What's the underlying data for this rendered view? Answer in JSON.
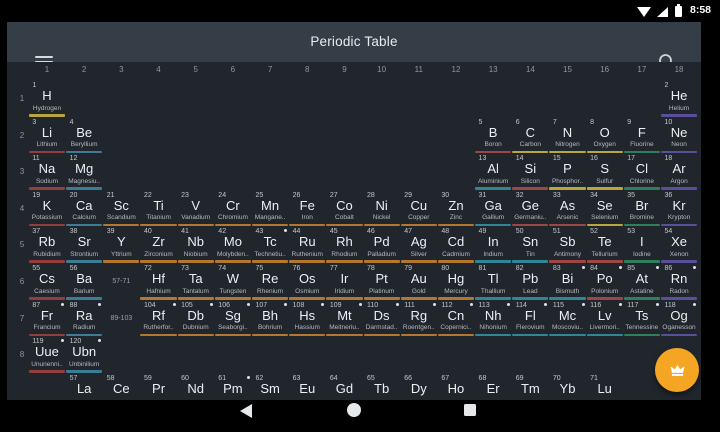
{
  "status_bar": {
    "time": "8:58",
    "icons": [
      "wifi-icon",
      "cell-signal-icon",
      "battery-icon"
    ]
  },
  "app_bar": {
    "title": "Periodic Table",
    "menu_icon": "hamburger-menu-icon",
    "search_icon": "search-icon"
  },
  "colors": {
    "status_bar_bg": "#000000",
    "app_bar_bg": "#353d46",
    "body_bg": "#21262d",
    "fab": "#f5a524",
    "category_colors": {
      "alkali": "#963c3c",
      "alkaline": "#3b7d96",
      "transition": "#b5762f",
      "post_transition": "#2f8696",
      "metalloid": "#a04545",
      "nonmetal": "#b9a73e",
      "halogen": "#2f7e5e",
      "noble": "#5b4f99",
      "lanthanide": "#4a8a5a"
    }
  },
  "table": {
    "group_labels": [
      "1",
      "2",
      "3",
      "4",
      "5",
      "6",
      "7",
      "8",
      "9",
      "10",
      "11",
      "12",
      "13",
      "14",
      "15",
      "16",
      "17",
      "18"
    ],
    "period_labels": [
      "1",
      "2",
      "3",
      "4",
      "5",
      "6",
      "7",
      "8"
    ],
    "placeholders": [
      {
        "label": "57-71",
        "row": 6,
        "col": 3
      },
      {
        "label": "89-103",
        "row": 7,
        "col": 3
      }
    ],
    "element_fields": [
      "atomic_number",
      "symbol",
      "name",
      "row",
      "col",
      "category",
      "radioactive_dot"
    ],
    "elements": [
      [
        1,
        "H",
        "Hydrogen",
        1,
        1,
        "nonmetal",
        0
      ],
      [
        2,
        "He",
        "Helium",
        1,
        18,
        "noble",
        0
      ],
      [
        3,
        "Li",
        "Lithium",
        2,
        1,
        "alkali",
        0
      ],
      [
        4,
        "Be",
        "Beryllium",
        2,
        2,
        "alkaline",
        0
      ],
      [
        5,
        "B",
        "Boron",
        2,
        13,
        "metalloid",
        0
      ],
      [
        6,
        "C",
        "Carbon",
        2,
        14,
        "nonmetal",
        0
      ],
      [
        7,
        "N",
        "Nitrogen",
        2,
        15,
        "nonmetal",
        0
      ],
      [
        8,
        "O",
        "Oxygen",
        2,
        16,
        "nonmetal",
        0
      ],
      [
        9,
        "F",
        "Fluorine",
        2,
        17,
        "halogen",
        0
      ],
      [
        10,
        "Ne",
        "Neon",
        2,
        18,
        "noble",
        0
      ],
      [
        11,
        "Na",
        "Sodium",
        3,
        1,
        "alkali",
        0
      ],
      [
        12,
        "Mg",
        "Magnesiu..",
        3,
        2,
        "alkaline",
        0
      ],
      [
        13,
        "Al",
        "Aluminium",
        3,
        13,
        "post_transition",
        0
      ],
      [
        14,
        "Si",
        "Silicon",
        3,
        14,
        "metalloid",
        0
      ],
      [
        15,
        "P",
        "Phosphor..",
        3,
        15,
        "nonmetal",
        0
      ],
      [
        16,
        "S",
        "Sulfur",
        3,
        16,
        "nonmetal",
        0
      ],
      [
        17,
        "Cl",
        "Chlorine",
        3,
        17,
        "halogen",
        0
      ],
      [
        18,
        "Ar",
        "Argon",
        3,
        18,
        "noble",
        0
      ],
      [
        19,
        "K",
        "Potassium",
        4,
        1,
        "alkali",
        0
      ],
      [
        20,
        "Ca",
        "Calcium",
        4,
        2,
        "alkaline",
        0
      ],
      [
        21,
        "Sc",
        "Scandium",
        4,
        3,
        "transition",
        0
      ],
      [
        22,
        "Ti",
        "Titanium",
        4,
        4,
        "transition",
        0
      ],
      [
        23,
        "V",
        "Vanadium",
        4,
        5,
        "transition",
        0
      ],
      [
        24,
        "Cr",
        "Chromium",
        4,
        6,
        "transition",
        0
      ],
      [
        25,
        "Mn",
        "Mangane..",
        4,
        7,
        "transition",
        0
      ],
      [
        26,
        "Fe",
        "Iron",
        4,
        8,
        "transition",
        0
      ],
      [
        27,
        "Co",
        "Cobalt",
        4,
        9,
        "transition",
        0
      ],
      [
        28,
        "Ni",
        "Nickel",
        4,
        10,
        "transition",
        0
      ],
      [
        29,
        "Cu",
        "Copper",
        4,
        11,
        "transition",
        0
      ],
      [
        30,
        "Zn",
        "Zinc",
        4,
        12,
        "transition",
        0
      ],
      [
        31,
        "Ga",
        "Gallium",
        4,
        13,
        "post_transition",
        0
      ],
      [
        32,
        "Ge",
        "Germaniu..",
        4,
        14,
        "metalloid",
        0
      ],
      [
        33,
        "As",
        "Arsenic",
        4,
        15,
        "metalloid",
        0
      ],
      [
        34,
        "Se",
        "Selenium",
        4,
        16,
        "nonmetal",
        0
      ],
      [
        35,
        "Br",
        "Bromine",
        4,
        17,
        "halogen",
        0
      ],
      [
        36,
        "Kr",
        "Krypton",
        4,
        18,
        "noble",
        0
      ],
      [
        37,
        "Rb",
        "Rubidium",
        5,
        1,
        "alkali",
        0
      ],
      [
        38,
        "Sr",
        "Strontium",
        5,
        2,
        "alkaline",
        0
      ],
      [
        39,
        "Y",
        "Yttrium",
        5,
        3,
        "transition",
        0
      ],
      [
        40,
        "Zr",
        "Zirconium",
        5,
        4,
        "transition",
        0
      ],
      [
        41,
        "Nb",
        "Niobium",
        5,
        5,
        "transition",
        0
      ],
      [
        42,
        "Mo",
        "Molybden..",
        5,
        6,
        "transition",
        0
      ],
      [
        43,
        "Tc",
        "Technetiu..",
        5,
        7,
        "transition",
        1
      ],
      [
        44,
        "Ru",
        "Ruthenium",
        5,
        8,
        "transition",
        0
      ],
      [
        45,
        "Rh",
        "Rhodium",
        5,
        9,
        "transition",
        0
      ],
      [
        46,
        "Pd",
        "Palladium",
        5,
        10,
        "transition",
        0
      ],
      [
        47,
        "Ag",
        "Silver",
        5,
        11,
        "transition",
        0
      ],
      [
        48,
        "Cd",
        "Cadmium",
        5,
        12,
        "transition",
        0
      ],
      [
        49,
        "In",
        "Indium",
        5,
        13,
        "post_transition",
        0
      ],
      [
        50,
        "Sn",
        "Tin",
        5,
        14,
        "post_transition",
        0
      ],
      [
        51,
        "Sb",
        "Antimony",
        5,
        15,
        "metalloid",
        0
      ],
      [
        52,
        "Te",
        "Tellurium",
        5,
        16,
        "metalloid",
        0
      ],
      [
        53,
        "I",
        "Iodine",
        5,
        17,
        "halogen",
        0
      ],
      [
        54,
        "Xe",
        "Xenon",
        5,
        18,
        "noble",
        0
      ],
      [
        55,
        "Cs",
        "Caesium",
        6,
        1,
        "alkali",
        0
      ],
      [
        56,
        "Ba",
        "Barium",
        6,
        2,
        "alkaline",
        0
      ],
      [
        72,
        "Hf",
        "Hafnium",
        6,
        4,
        "transition",
        0
      ],
      [
        73,
        "Ta",
        "Tantalum",
        6,
        5,
        "transition",
        0
      ],
      [
        74,
        "W",
        "Tungsten",
        6,
        6,
        "transition",
        0
      ],
      [
        75,
        "Re",
        "Rhenium",
        6,
        7,
        "transition",
        0
      ],
      [
        76,
        "Os",
        "Osmium",
        6,
        8,
        "transition",
        0
      ],
      [
        77,
        "Ir",
        "Iridium",
        6,
        9,
        "transition",
        0
      ],
      [
        78,
        "Pt",
        "Platinum",
        6,
        10,
        "transition",
        0
      ],
      [
        79,
        "Au",
        "Gold",
        6,
        11,
        "transition",
        0
      ],
      [
        80,
        "Hg",
        "Mercury",
        6,
        12,
        "transition",
        0
      ],
      [
        81,
        "Tl",
        "Thallium",
        6,
        13,
        "post_transition",
        0
      ],
      [
        82,
        "Pb",
        "Lead",
        6,
        14,
        "post_transition",
        0
      ],
      [
        83,
        "Bi",
        "Bismuth",
        6,
        15,
        "post_transition",
        1
      ],
      [
        84,
        "Po",
        "Polonium",
        6,
        16,
        "metalloid",
        1
      ],
      [
        85,
        "At",
        "Astatine",
        6,
        17,
        "halogen",
        1
      ],
      [
        86,
        "Rn",
        "Radon",
        6,
        18,
        "noble",
        1
      ],
      [
        87,
        "Fr",
        "Francium",
        7,
        1,
        "alkali",
        1
      ],
      [
        88,
        "Ra",
        "Radium",
        7,
        2,
        "alkaline",
        1
      ],
      [
        104,
        "Rf",
        "Rutherfor..",
        7,
        4,
        "transition",
        1
      ],
      [
        105,
        "Db",
        "Dubnium",
        7,
        5,
        "transition",
        1
      ],
      [
        106,
        "Sg",
        "Seaborgi..",
        7,
        6,
        "transition",
        1
      ],
      [
        107,
        "Bh",
        "Bohrium",
        7,
        7,
        "transition",
        1
      ],
      [
        108,
        "Hs",
        "Hassium",
        7,
        8,
        "transition",
        1
      ],
      [
        109,
        "Mt",
        "Meitneriu..",
        7,
        9,
        "transition",
        1
      ],
      [
        110,
        "Ds",
        "Darmstad..",
        7,
        10,
        "transition",
        1
      ],
      [
        111,
        "Rg",
        "Roentgen..",
        7,
        11,
        "transition",
        1
      ],
      [
        112,
        "Cn",
        "Copernici..",
        7,
        12,
        "transition",
        1
      ],
      [
        113,
        "Nh",
        "Nihonium",
        7,
        13,
        "post_transition",
        1
      ],
      [
        114,
        "Fl",
        "Flerovium",
        7,
        14,
        "post_transition",
        1
      ],
      [
        115,
        "Mc",
        "Moscoviu..",
        7,
        15,
        "post_transition",
        1
      ],
      [
        116,
        "Lv",
        "Livermori..",
        7,
        16,
        "post_transition",
        1
      ],
      [
        117,
        "Ts",
        "Tennessine",
        7,
        17,
        "halogen",
        1
      ],
      [
        118,
        "Og",
        "Oganesson",
        7,
        18,
        "noble",
        1
      ],
      [
        119,
        "Uue",
        "Ununenni..",
        8,
        1,
        "alkali",
        1
      ],
      [
        120,
        "Ubn",
        "Unbinilium",
        8,
        2,
        "alkaline",
        1
      ],
      [
        57,
        "La",
        "",
        9,
        2,
        "lanthanide",
        0
      ],
      [
        58,
        "Ce",
        "",
        9,
        3,
        "lanthanide",
        0
      ],
      [
        59,
        "Pr",
        "",
        9,
        4,
        "lanthanide",
        0
      ],
      [
        60,
        "Nd",
        "",
        9,
        5,
        "lanthanide",
        0
      ],
      [
        61,
        "Pm",
        "",
        9,
        6,
        "lanthanide",
        1
      ],
      [
        62,
        "Sm",
        "",
        9,
        7,
        "lanthanide",
        0
      ],
      [
        63,
        "Eu",
        "",
        9,
        8,
        "lanthanide",
        0
      ],
      [
        64,
        "Gd",
        "",
        9,
        9,
        "lanthanide",
        0
      ],
      [
        65,
        "Tb",
        "",
        9,
        10,
        "lanthanide",
        0
      ],
      [
        66,
        "Dy",
        "",
        9,
        11,
        "lanthanide",
        0
      ],
      [
        67,
        "Ho",
        "",
        9,
        12,
        "lanthanide",
        0
      ],
      [
        68,
        "Er",
        "",
        9,
        13,
        "lanthanide",
        0
      ],
      [
        69,
        "Tm",
        "",
        9,
        14,
        "lanthanide",
        0
      ],
      [
        70,
        "Yb",
        "",
        9,
        15,
        "lanthanide",
        0
      ],
      [
        71,
        "Lu",
        "",
        9,
        16,
        "lanthanide",
        0
      ]
    ]
  },
  "fab": {
    "icon": "crown-icon"
  },
  "nav_bar": {
    "buttons": [
      "back",
      "home",
      "recents"
    ]
  }
}
